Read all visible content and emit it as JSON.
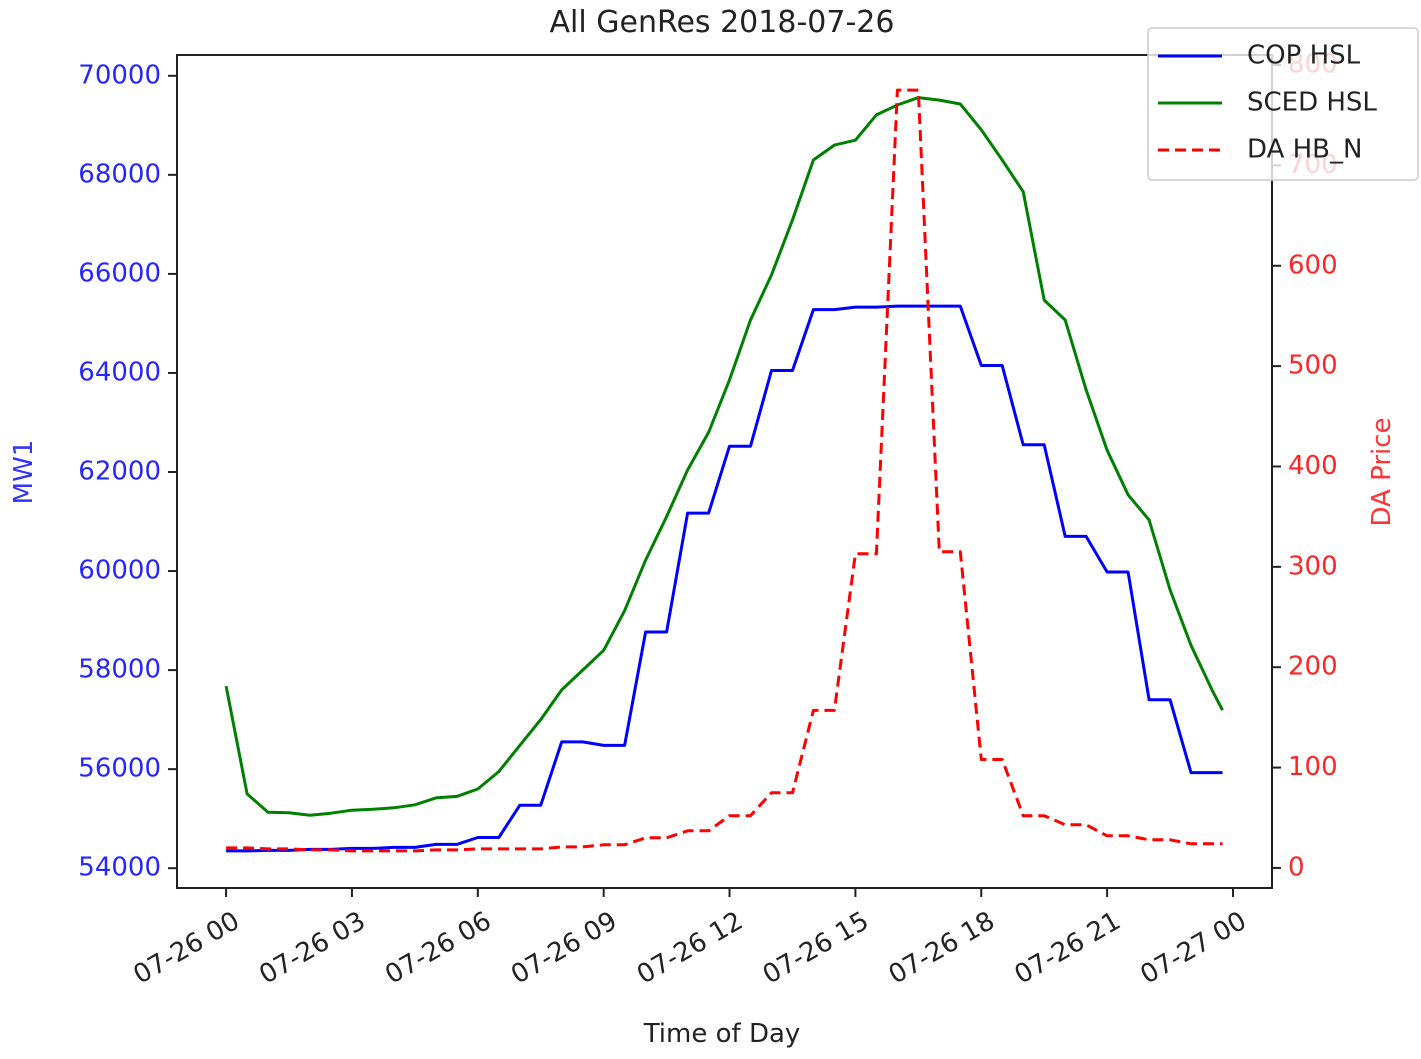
{
  "chart_data": {
    "type": "line",
    "title": "All GenRes 2018-07-26",
    "xlabel": "Time of Day",
    "ylabel": "MW1",
    "y2label": "DA Price",
    "x": [
      0,
      0.5,
      1,
      1.5,
      2,
      2.5,
      3,
      3.5,
      4,
      4.5,
      5,
      5.5,
      6,
      6.5,
      7,
      7.5,
      8,
      8.5,
      9,
      9.5,
      10,
      10.5,
      11,
      11.5,
      12,
      12.5,
      13,
      13.5,
      14,
      14.5,
      15,
      15.5,
      16,
      16.5,
      17,
      17.5,
      18,
      18.5,
      19,
      19.5,
      20,
      20.5,
      21,
      21.5,
      22,
      22.5,
      23,
      23.5,
      23.75
    ],
    "xlim": [
      -1.17,
      24.93
    ],
    "xticks": [
      {
        "value": 0,
        "label": "07-26 00"
      },
      {
        "value": 3,
        "label": "07-26 03"
      },
      {
        "value": 6,
        "label": "07-26 06"
      },
      {
        "value": 9,
        "label": "07-26 09"
      },
      {
        "value": 12,
        "label": "07-26 12"
      },
      {
        "value": 15,
        "label": "07-26 15"
      },
      {
        "value": 18,
        "label": "07-26 18"
      },
      {
        "value": 21,
        "label": "07-26 21"
      },
      {
        "value": 24,
        "label": "07-27 00"
      }
    ],
    "ylim": [
      53600,
      70420
    ],
    "yticks": [
      54000,
      56000,
      58000,
      60000,
      62000,
      64000,
      66000,
      68000,
      70000
    ],
    "y2lim": [
      -20,
      810
    ],
    "y2ticks": [
      0,
      100,
      200,
      300,
      400,
      500,
      600,
      700,
      800
    ],
    "legend": "upper right",
    "series": [
      {
        "name": "COP HSL",
        "color": "#0000ff",
        "linestyle": "solid",
        "values": [
          54350,
          54350,
          54360,
          54360,
          54380,
          54380,
          54400,
          54400,
          54420,
          54420,
          54480,
          54480,
          54620,
          54620,
          55270,
          55270,
          56550,
          56550,
          56480,
          56480,
          58770,
          58770,
          61170,
          61170,
          62520,
          62520,
          64050,
          64050,
          65280,
          65280,
          65330,
          65330,
          65350,
          65350,
          65350,
          65350,
          64150,
          64150,
          62550,
          62550,
          60700,
          60700,
          59980,
          59980,
          57400,
          57400,
          55930,
          55930,
          55930
        ]
      },
      {
        "name": "SCED HSL",
        "color": "#008000",
        "linestyle": "solid",
        "values": [
          57677,
          55500,
          55130,
          55120,
          55070,
          55110,
          55170,
          55190,
          55220,
          55280,
          55420,
          55450,
          55600,
          55950,
          56480,
          57000,
          57600,
          58000,
          58400,
          59200,
          60220,
          61100,
          62040,
          62800,
          63860,
          65070,
          65980,
          67090,
          68300,
          68600,
          68700,
          69210,
          69410,
          69560,
          69510,
          69430,
          68910,
          68300,
          67660,
          65470,
          65070,
          63660,
          62440,
          61540,
          61030,
          59620,
          58500,
          57600,
          57190
        ]
      },
      {
        "name": "DA HB_N",
        "color": "#ff0000",
        "linestyle": "dashed",
        "axis": "y2",
        "values": [
          20,
          20,
          19,
          19,
          18,
          18,
          17,
          17,
          17,
          17,
          18,
          18,
          19,
          19,
          19,
          19,
          21,
          21,
          23,
          23,
          30,
          30,
          37,
          37,
          52,
          52,
          75,
          75,
          157,
          157,
          313,
          313,
          775,
          775,
          315,
          315,
          108,
          108,
          52,
          52,
          43,
          43,
          32,
          32,
          28,
          28,
          24,
          24,
          24
        ]
      }
    ]
  }
}
